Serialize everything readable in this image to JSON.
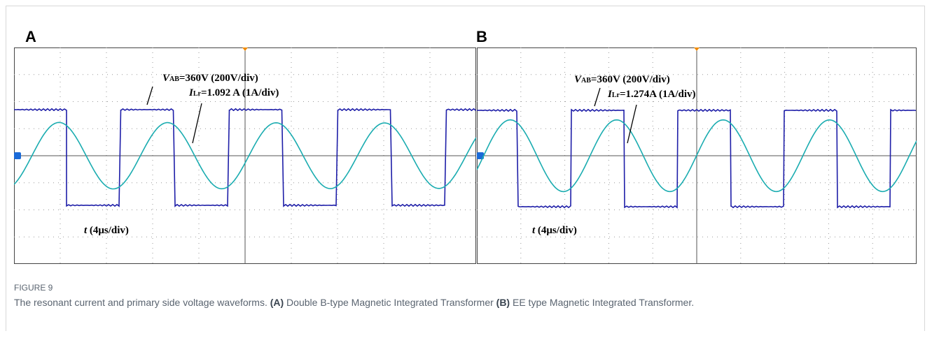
{
  "figure": {
    "panels": [
      {
        "label": "A",
        "vab_symbol": "V",
        "vab_sub": "AB",
        "vab_text": "=360V (200V/div)",
        "ilr_symbol": "I",
        "ilr_sub": "Lr",
        "ilr_text": "=1.092 A (1A/div)",
        "time_text": "t",
        "time_div": " (4μs/div)"
      },
      {
        "label": "B",
        "vab_symbol": "V",
        "vab_sub": "AB",
        "vab_text": "=360V (200V/div)",
        "ilr_symbol": "I",
        "ilr_sub": "Lr",
        "ilr_text": "=1.274A (1A/div)",
        "time_text": "t",
        "time_div": " (4μs/div)"
      }
    ],
    "caption_label": "FIGURE 9",
    "caption_text": "The resonant current and primary side voltage waveforms. ",
    "caption_a": "(A)",
    "caption_a_text": " Double B-type Magnetic Integrated Transformer ",
    "caption_b": "(B)",
    "caption_b_text": " EE type Magnetic Integrated Transformer."
  }
}
